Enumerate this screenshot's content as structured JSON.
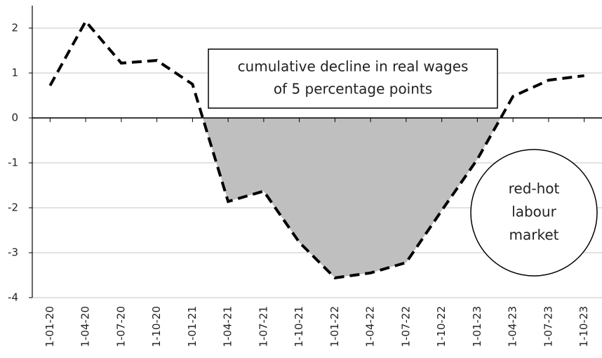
{
  "chart_data": {
    "type": "line",
    "categories": [
      "1-01-20",
      "1-04-20",
      "1-07-20",
      "1-10-20",
      "1-01-21",
      "1-04-21",
      "1-07-21",
      "1-10-21",
      "1-01-22",
      "1-04-22",
      "1-07-22",
      "1-10-22",
      "1-01-23",
      "1-04-23",
      "1-07-23",
      "1-10-23"
    ],
    "values": [
      0.72,
      2.15,
      1.22,
      1.28,
      0.75,
      -1.86,
      -1.63,
      -2.77,
      -3.56,
      -3.45,
      -3.22,
      -2.06,
      -0.92,
      0.48,
      0.84,
      0.94
    ],
    "color": "#000000",
    "area_color": "#bfbfbf",
    "ylim": [
      -4,
      2.5
    ],
    "yticks": [
      -4,
      -3,
      -2,
      -1,
      0,
      1,
      2
    ],
    "grid": true,
    "annotations": {
      "box": [
        "cumulative decline in real wages",
        "of 5 percentage points"
      ],
      "circle": [
        "red-hot",
        "labour",
        "market"
      ]
    }
  }
}
